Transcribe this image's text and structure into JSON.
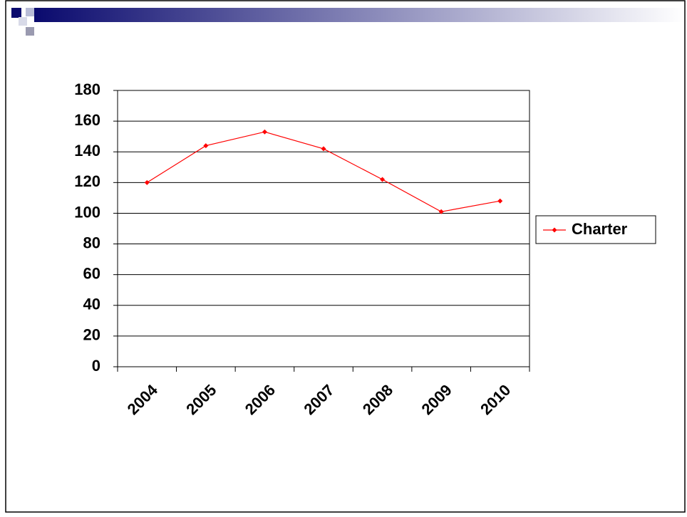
{
  "chart_data": {
    "type": "line",
    "categories": [
      "2004",
      "2005",
      "2006",
      "2007",
      "2008",
      "2009",
      "2010"
    ],
    "series": [
      {
        "name": "Charter",
        "color": "#ff0000",
        "values": [
          120,
          144,
          153,
          142,
          122,
          101,
          108
        ]
      }
    ],
    "ylim": [
      0,
      180
    ],
    "yticks": [
      0,
      20,
      40,
      60,
      80,
      100,
      120,
      140,
      160,
      180
    ],
    "grid": true,
    "legend": "right"
  }
}
